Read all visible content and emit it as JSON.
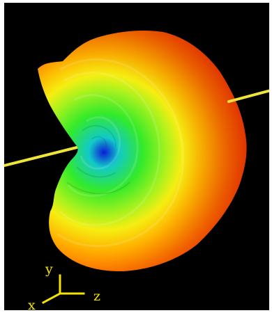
{
  "scene": {
    "background": "#000000",
    "shaft_color": "#f0e43a",
    "gradient_stops": [
      "#0a1bd6",
      "#12c9c9",
      "#33ea2a",
      "#a9f21e",
      "#f5ee12",
      "#ffb000",
      "#ff6a00",
      "#ff2a00"
    ]
  },
  "axes": {
    "color": "#f2e300",
    "x_label": "x",
    "y_label": "y",
    "z_label": "z"
  }
}
